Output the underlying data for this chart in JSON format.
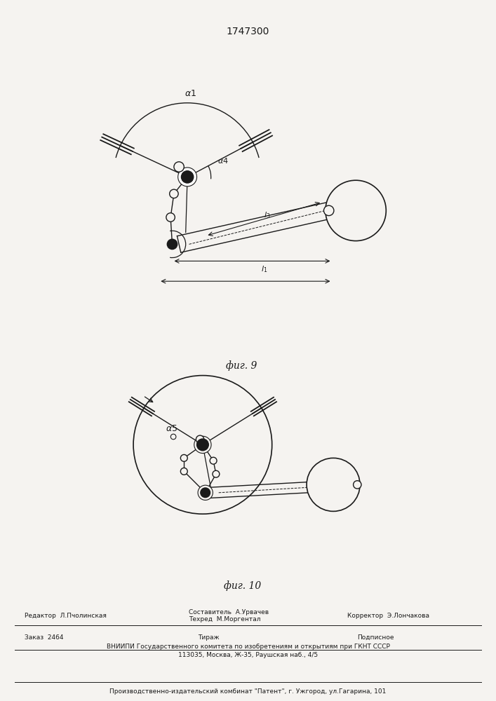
{
  "title": "1747300",
  "fig9_label": "фиг. 9",
  "fig10_label": "фиг. 10",
  "bg_color": "#f5f3f0",
  "line_color": "#1a1a1a"
}
